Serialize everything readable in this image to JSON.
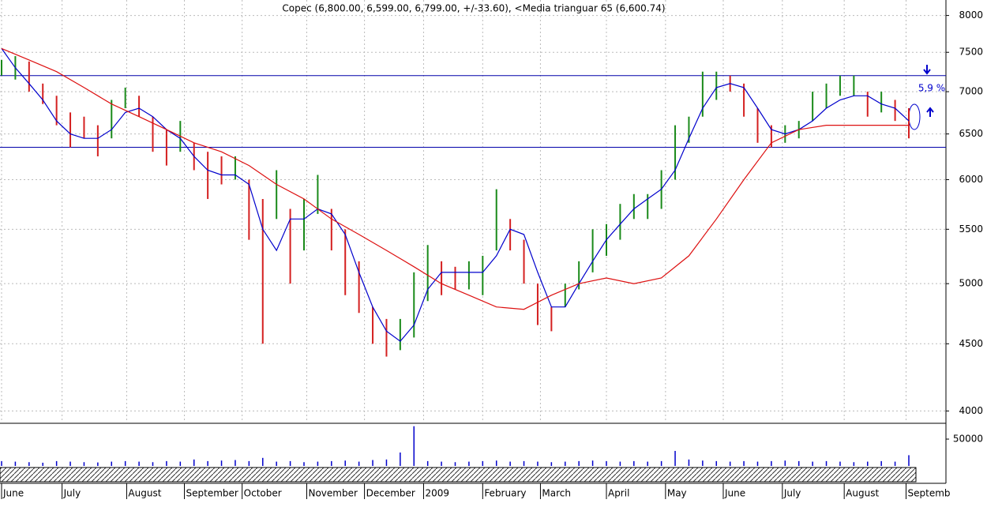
{
  "chart_data": {
    "type": "bar",
    "title": "Copec (6,800.00, 6,599.00, 6,799.00, +/-33.60), <Media trianguar  65 (6,600.74)",
    "log_scale": true,
    "grid": true,
    "ylim": [
      3920,
      8220
    ],
    "yticks": [
      4000,
      4500,
      5000,
      5500,
      6000,
      6500,
      7000,
      7500,
      8000
    ],
    "xlim": [
      0,
      68.7
    ],
    "xticks": [
      {
        "value": 0,
        "label": "June"
      },
      {
        "value": 4.4,
        "label": "July"
      },
      {
        "value": 9.1,
        "label": "August"
      },
      {
        "value": 13.3,
        "label": "September"
      },
      {
        "value": 17.5,
        "label": "October"
      },
      {
        "value": 22.2,
        "label": "November"
      },
      {
        "value": 26.4,
        "label": "December"
      },
      {
        "value": 30.7,
        "label": "2009"
      },
      {
        "value": 35.0,
        "label": "February"
      },
      {
        "value": 39.2,
        "label": "March"
      },
      {
        "value": 44.0,
        "label": "April"
      },
      {
        "value": 48.3,
        "label": "May"
      },
      {
        "value": 52.5,
        "label": "June"
      },
      {
        "value": 56.8,
        "label": "July"
      },
      {
        "value": 61.3,
        "label": "August"
      },
      {
        "value": 65.8,
        "label": "Septemb"
      }
    ],
    "up_color": "#1a8a1a",
    "down_color": "#d42020",
    "high": [
      7400,
      7450,
      7380,
      7100,
      6950,
      6750,
      6700,
      6600,
      6900,
      7050,
      6950,
      6700,
      6550,
      6650,
      6400,
      6300,
      6250,
      6250,
      6000,
      5800,
      6100,
      5700,
      5800,
      6050,
      5700,
      5500,
      5200,
      4800,
      4700,
      4700,
      5100,
      5350,
      5200,
      5150,
      5200,
      5250,
      5900,
      5600,
      5400,
      5000,
      4800,
      5000,
      5200,
      5500,
      5550,
      5750,
      5850,
      5850,
      6100,
      6600,
      6700,
      7250,
      7250,
      7200,
      7100,
      6800,
      6600,
      6600,
      6650,
      7000,
      7100,
      7200,
      7200,
      7000,
      7000,
      6900,
      6800
    ],
    "low": [
      7200,
      7150,
      7000,
      6850,
      6600,
      6350,
      6450,
      6250,
      6450,
      6800,
      6700,
      6300,
      6150,
      6300,
      6100,
      5800,
      5950,
      6000,
      5400,
      4500,
      5600,
      5000,
      5300,
      5650,
      5300,
      4900,
      4750,
      4500,
      4400,
      4450,
      4550,
      4850,
      4900,
      4950,
      4950,
      4900,
      5300,
      5300,
      5000,
      4650,
      4600,
      4800,
      4950,
      5100,
      5250,
      5400,
      5600,
      5600,
      5700,
      6000,
      6400,
      6700,
      6900,
      7000,
      6700,
      6400,
      6350,
      6400,
      6450,
      6650,
      6800,
      6950,
      6950,
      6700,
      6750,
      6650,
      6450
    ],
    "series": [
      {
        "color": "#0000cc",
        "values": [
          7550,
          7300,
          7100,
          6900,
          6650,
          6500,
          6450,
          6450,
          6550,
          6750,
          6800,
          6700,
          6550,
          6450,
          6250,
          6100,
          6050,
          6050,
          5950,
          5500,
          5300,
          5600,
          5600,
          5700,
          5650,
          5450,
          5100,
          4800,
          4600,
          4520,
          4650,
          4950,
          5100,
          5100,
          5100,
          5100,
          5250,
          5500,
          5450,
          5100,
          4800,
          4800,
          5000,
          5200,
          5400,
          5550,
          5700,
          5800,
          5900,
          6100,
          6450,
          6800,
          7050,
          7100,
          7050,
          6800,
          6550,
          6500,
          6550,
          6650,
          6800,
          6900,
          6950,
          6950,
          6850,
          6800,
          6650
        ]
      },
      {
        "color": "#dd1010",
        "x": [
          0,
          2,
          4,
          6,
          8,
          10,
          12,
          14,
          16,
          18,
          20,
          22,
          24,
          26,
          28,
          30,
          32,
          34,
          36,
          38,
          40,
          42,
          44,
          46,
          48,
          50,
          52,
          54,
          56,
          58,
          60,
          62,
          64,
          66
        ],
        "values": [
          7550,
          7400,
          7250,
          7050,
          6850,
          6700,
          6550,
          6400,
          6300,
          6150,
          5950,
          5800,
          5600,
          5450,
          5300,
          5150,
          5000,
          4900,
          4800,
          4780,
          4900,
          5000,
          5050,
          5000,
          5050,
          5250,
          5600,
          6000,
          6400,
          6550,
          6600,
          6600,
          6600,
          6600
        ]
      }
    ],
    "hlines": [
      7200,
      6350
    ],
    "annotation": "5,9 %",
    "volume": {
      "color": "#0000cc",
      "ylim": [
        0,
        78000
      ],
      "yticks": [
        50000
      ],
      "values": [
        9000,
        8000,
        7000,
        6000,
        9000,
        8000,
        7000,
        6500,
        8000,
        9000,
        8000,
        7000,
        9000,
        8000,
        12000,
        9000,
        10000,
        11000,
        9000,
        15000,
        8000,
        9000,
        7000,
        8000,
        9000,
        10000,
        8000,
        11000,
        12000,
        25000,
        74000,
        9000,
        8000,
        7000,
        8000,
        9000,
        10000,
        8000,
        9000,
        8000,
        7000,
        8000,
        9000,
        10000,
        9000,
        8000,
        9000,
        8000,
        9000,
        28000,
        12000,
        10000,
        9000,
        8000,
        9000,
        8000,
        9000,
        10000,
        9000,
        8000,
        9000,
        8000,
        7000,
        8000,
        9000,
        8000,
        20000
      ]
    }
  }
}
